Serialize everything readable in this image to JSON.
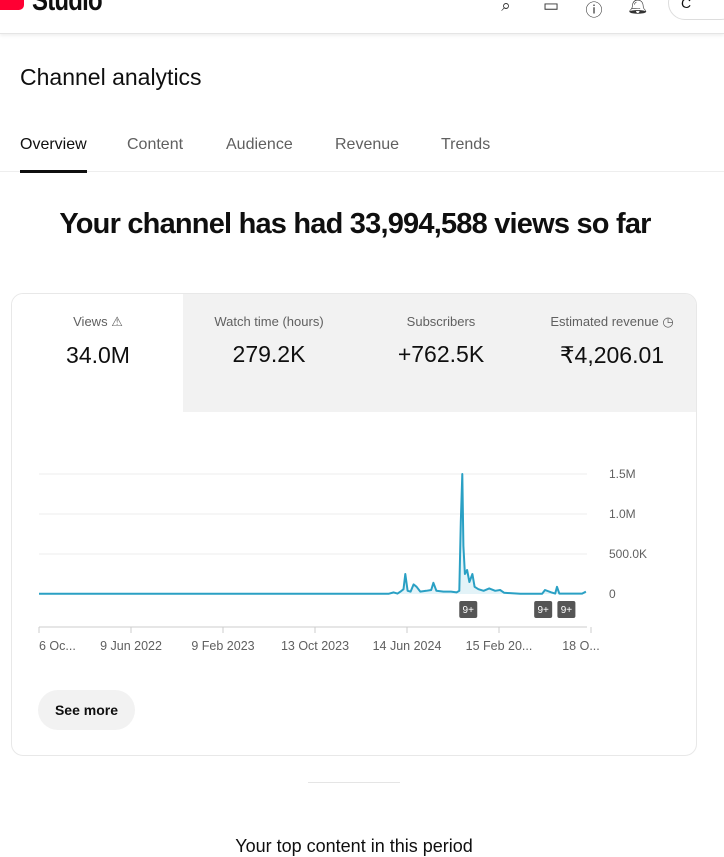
{
  "header": {
    "logo_text": "Studio",
    "icons": [
      "search-icon",
      "feedback-icon",
      "help-icon",
      "bell-icon"
    ],
    "create_label": "C"
  },
  "page_title": "Channel analytics",
  "tabs": [
    {
      "label": "Overview",
      "active": true
    },
    {
      "label": "Content"
    },
    {
      "label": "Audience"
    },
    {
      "label": "Revenue"
    },
    {
      "label": "Trends"
    }
  ],
  "headline": "Your channel has had 33,994,588 views so far",
  "metrics": [
    {
      "label": "Views",
      "value": "34.0M",
      "icon": "warning-icon"
    },
    {
      "label": "Watch time (hours)",
      "value": "279.2K"
    },
    {
      "label": "Subscribers",
      "value": "+762.5K"
    },
    {
      "label": "Estimated revenue",
      "value": "₹4,206.01",
      "icon": "clock-icon"
    }
  ],
  "see_more": "See more",
  "top_content": "Your top content in this period",
  "chart_data": {
    "type": "area",
    "color": "#2aa0c4",
    "x_ticks": [
      "6 Oc...",
      "9 Jun 2022",
      "9 Feb 2023",
      "13 Oct 2023",
      "14 Jun 2024",
      "15 Feb 20...",
      "18 O..."
    ],
    "y_ticks": [
      "0",
      "500.0K",
      "1.0M",
      "1.5M"
    ],
    "ylim": [
      0,
      1500000
    ],
    "xlim": [
      "2021-10-06",
      "2025-10-08"
    ],
    "grid": true,
    "series": [
      {
        "points": [
          [
            "2021-10-06",
            3000
          ],
          [
            "2024-04-26",
            3000
          ],
          [
            "2024-05-10",
            20000
          ],
          [
            "2024-05-20",
            5000
          ],
          [
            "2024-05-28",
            30000
          ],
          [
            "2024-06-05",
            60000
          ],
          [
            "2024-06-10",
            250000
          ],
          [
            "2024-06-16",
            40000
          ],
          [
            "2024-06-24",
            30000
          ],
          [
            "2024-07-02",
            120000
          ],
          [
            "2024-07-10",
            90000
          ],
          [
            "2024-07-20",
            30000
          ],
          [
            "2024-08-05",
            40000
          ],
          [
            "2024-08-18",
            50000
          ],
          [
            "2024-08-24",
            140000
          ],
          [
            "2024-09-01",
            40000
          ],
          [
            "2024-09-20",
            30000
          ],
          [
            "2024-10-10",
            30000
          ],
          [
            "2024-10-25",
            20000
          ],
          [
            "2024-11-01",
            40000
          ],
          [
            "2024-11-05",
            900000
          ],
          [
            "2024-11-09",
            1500000
          ],
          [
            "2024-11-12",
            600000
          ],
          [
            "2024-11-16",
            250000
          ],
          [
            "2024-11-22",
            300000
          ],
          [
            "2024-11-28",
            150000
          ],
          [
            "2024-12-06",
            250000
          ],
          [
            "2024-12-12",
            90000
          ],
          [
            "2024-12-22",
            60000
          ],
          [
            "2025-01-05",
            40000
          ],
          [
            "2025-01-20",
            70000
          ],
          [
            "2025-02-05",
            40000
          ],
          [
            "2025-02-18",
            50000
          ],
          [
            "2025-03-01",
            15000
          ],
          [
            "2025-04-13",
            3000
          ],
          [
            "2025-06-10",
            3000
          ],
          [
            "2025-06-18",
            50000
          ],
          [
            "2025-07-05",
            20000
          ],
          [
            "2025-07-15",
            5000
          ],
          [
            "2025-07-20",
            90000
          ],
          [
            "2025-07-26",
            5000
          ],
          [
            "2025-09-25",
            5000
          ],
          [
            "2025-10-05",
            30000
          ]
        ]
      }
    ],
    "annotations": [
      {
        "date": "2024-11-25",
        "label": "9+"
      },
      {
        "date": "2025-06-13",
        "label": "9+"
      },
      {
        "date": "2025-08-14",
        "label": "9+"
      }
    ]
  }
}
